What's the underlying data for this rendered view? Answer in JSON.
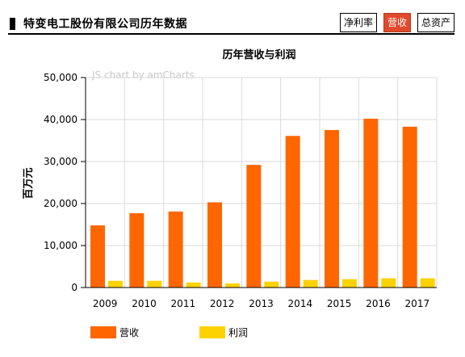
{
  "header": {
    "title": "特变电工股份有限公司历年数据",
    "tabs": [
      {
        "label": "净利率",
        "active": false
      },
      {
        "label": "营收",
        "active": true
      },
      {
        "label": "总资产",
        "active": false
      }
    ]
  },
  "watermark": "JS chart by amCharts",
  "colors": {
    "revenue": "#ff6600",
    "profit": "#fcd202",
    "active_tab": "#e04a2c"
  },
  "chart_data": {
    "type": "bar",
    "title": "历年营收与利润",
    "xlabel": "",
    "ylabel": "百万元",
    "ylim": [
      0,
      50000
    ],
    "yticks": [
      "0",
      "10,000",
      "20,000",
      "30,000",
      "40,000",
      "50,000"
    ],
    "categories": [
      "2009",
      "2010",
      "2011",
      "2012",
      "2013",
      "2014",
      "2015",
      "2016",
      "2017"
    ],
    "series": [
      {
        "name": "营收",
        "values": [
          14800,
          17700,
          18100,
          20300,
          29200,
          36100,
          37500,
          40200,
          38300
        ]
      },
      {
        "name": "利润",
        "values": [
          1600,
          1600,
          1200,
          1000,
          1400,
          1800,
          2000,
          2200,
          2200
        ]
      }
    ],
    "grid": true,
    "legend_position": "bottom-left"
  }
}
